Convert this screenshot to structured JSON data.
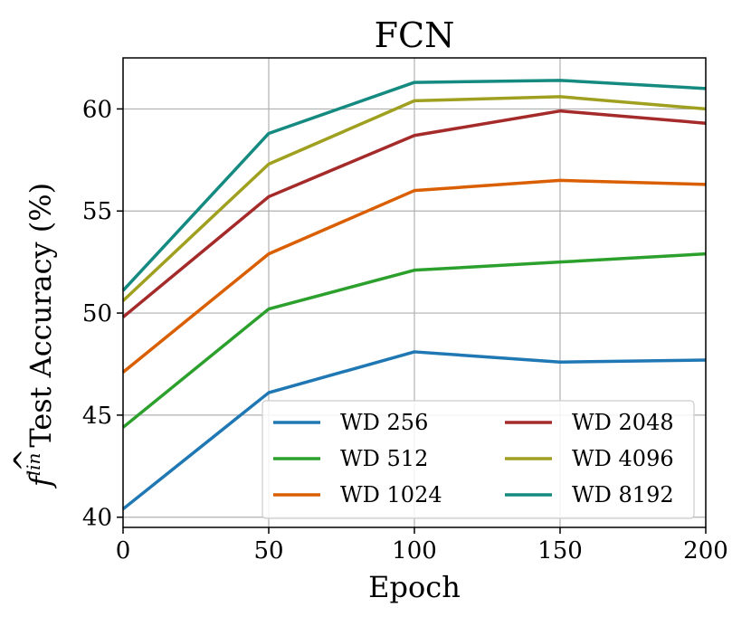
{
  "chart_data": {
    "type": "line",
    "title": "FCN",
    "xlabel": "Epoch",
    "ylabel": {
      "f": "f",
      "hat": "^",
      "superscript": "lin",
      "text": "Test Accuracy (%)"
    },
    "x": [
      0,
      50,
      100,
      150,
      200
    ],
    "xlim": [
      0,
      200
    ],
    "ylim": [
      39.5,
      62.5
    ],
    "xticks": [
      "0",
      "50",
      "100",
      "150",
      "200"
    ],
    "yticks": [
      "40",
      "45",
      "50",
      "55",
      "60"
    ],
    "grid": true,
    "legend": {
      "placement": "lower-right",
      "columns": 2
    },
    "series": [
      {
        "name": "WD 256",
        "color": "#1f77b4",
        "values": [
          40.4,
          46.1,
          48.1,
          47.6,
          47.7
        ]
      },
      {
        "name": "WD 512",
        "color": "#2ca02c",
        "values": [
          44.4,
          50.2,
          52.1,
          52.5,
          52.9
        ]
      },
      {
        "name": "WD 1024",
        "color": "#d95f02",
        "values": [
          47.1,
          52.9,
          56.0,
          56.5,
          56.3
        ]
      },
      {
        "name": "WD 2048",
        "color": "#a52a2a",
        "values": [
          49.8,
          55.7,
          58.7,
          59.9,
          59.3
        ]
      },
      {
        "name": "WD 4096",
        "color": "#a0a020",
        "values": [
          50.6,
          57.3,
          60.4,
          60.6,
          60.0
        ]
      },
      {
        "name": "WD 8192",
        "color": "#148a80",
        "values": [
          51.1,
          58.8,
          61.3,
          61.4,
          61.0
        ]
      }
    ]
  }
}
